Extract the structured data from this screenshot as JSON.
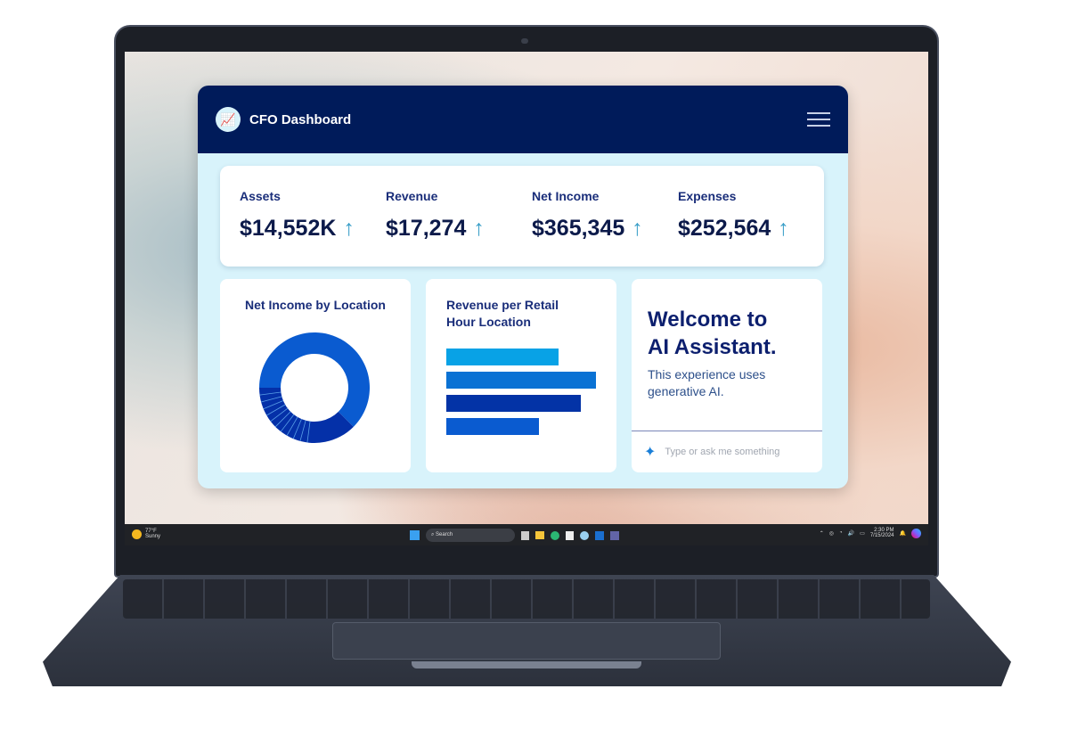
{
  "dashboard": {
    "title": "CFO Dashboard",
    "logo_icon": "chart-growth-icon",
    "menu_icon": "hamburger-menu-icon",
    "kpis": [
      {
        "label": "Assets",
        "value": "$14,552K",
        "trend": "↑"
      },
      {
        "label": "Revenue",
        "value": "$17,274",
        "trend": "↑"
      },
      {
        "label": "Net Income",
        "value": "$365,345",
        "trend": "↑"
      },
      {
        "label": "Expenses",
        "value": "$252,564",
        "trend": "↑"
      }
    ],
    "net_income_card": {
      "title": "Net Income by Location"
    },
    "revenue_card": {
      "title_line1": "Revenue per Retail",
      "title_line2": "Hour Location"
    },
    "ai": {
      "title_line1": "Welcome to",
      "title_line2": "AI Assistant.",
      "body": "This experience uses generative AI.",
      "placeholder": "Type or ask me something",
      "icon": "sparkle-icon"
    },
    "colors": {
      "header": "#001b5a",
      "panel": "#d8f3fb",
      "accent": "#3a9fc8"
    }
  },
  "chart_data": [
    {
      "type": "pie",
      "donut": true,
      "title": "Net Income by Location",
      "values": [
        62.5,
        37.5
      ],
      "colors": [
        "#0a5bd0",
        "#0430a8"
      ]
    },
    {
      "type": "bar",
      "orientation": "horizontal",
      "title": "Revenue per Retail Hour Location",
      "values": [
        75,
        100,
        90,
        62
      ],
      "colors": [
        "#08a2e6",
        "#0a72d4",
        "#0333a6",
        "#0a5bd0"
      ]
    }
  ],
  "taskbar": {
    "weather_temp": "77°F",
    "weather_text": "Sunny",
    "search": "Search",
    "time": "2:30 PM",
    "date": "7/15/2024"
  }
}
